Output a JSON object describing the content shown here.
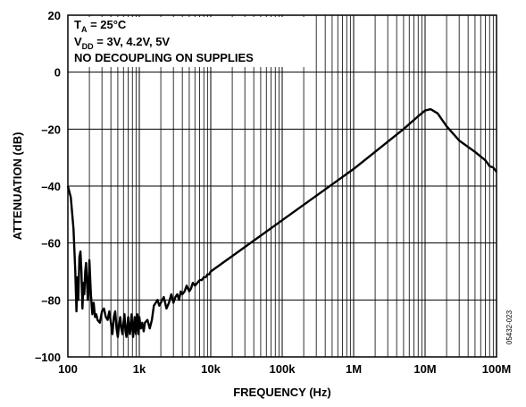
{
  "chart_data": {
    "type": "line",
    "xlabel": "FREQUENCY (Hz)",
    "ylabel": "ATTENUATION (dB)",
    "x_scale": "log",
    "xlim": [
      100,
      100000000
    ],
    "ylim": [
      -100,
      20
    ],
    "grid": true,
    "x_ticks": [
      {
        "value": 100,
        "label": "100"
      },
      {
        "value": 1000,
        "label": "1k"
      },
      {
        "value": 10000,
        "label": "10k"
      },
      {
        "value": 100000,
        "label": "100k"
      },
      {
        "value": 1000000,
        "label": "1M"
      },
      {
        "value": 10000000,
        "label": "10M"
      },
      {
        "value": 100000000,
        "label": "100M"
      }
    ],
    "y_ticks": [
      {
        "value": 20,
        "label": "20"
      },
      {
        "value": 0,
        "label": "0"
      },
      {
        "value": -20,
        "label": "–20"
      },
      {
        "value": -40,
        "label": "–40"
      },
      {
        "value": -60,
        "label": "–60"
      },
      {
        "value": -80,
        "label": "–80"
      },
      {
        "value": -100,
        "label": "–100"
      }
    ],
    "annotations": {
      "line1_main": "T",
      "line1_sub": "A",
      "line1_rest": " = 25°C",
      "line2_main": "V",
      "line2_sub": "DD",
      "line2_rest": " = 3V, 4.2V, 5V",
      "line3": "NO DECOUPLING ON SUPPLIES"
    },
    "figure_id": "05432-023",
    "series": [
      {
        "color": "#000000",
        "x": [
          100,
          110,
          120,
          127,
          132,
          136,
          140,
          145,
          150,
          155,
          160,
          165,
          170,
          175,
          180,
          185,
          190,
          195,
          200,
          210,
          220,
          230,
          240,
          250,
          260,
          280,
          300,
          320,
          340,
          360,
          380,
          400,
          420,
          440,
          460,
          480,
          500,
          520,
          540,
          560,
          580,
          600,
          620,
          640,
          660,
          680,
          700,
          720,
          740,
          760,
          780,
          800,
          820,
          840,
          860,
          880,
          900,
          920,
          940,
          960,
          980,
          1000,
          1050,
          1100,
          1150,
          1200,
          1300,
          1400,
          1500,
          1600,
          1700,
          1800,
          1900,
          2000,
          2200,
          2400,
          2600,
          2800,
          3000,
          3200,
          3400,
          3600,
          3800,
          4000,
          4300,
          4600,
          5000,
          5300,
          5600,
          6000,
          6500,
          7000,
          7500,
          8000,
          8500,
          9000,
          9500,
          10000,
          100000,
          1000000,
          5000000,
          8000000,
          10000000,
          12000000,
          15000000,
          20000000,
          30000000,
          50000000,
          70000000,
          80000000,
          90000000,
          100000000
        ],
        "y": [
          -40,
          -44,
          -55,
          -70,
          -84,
          -72,
          -80,
          -65,
          -63,
          -70,
          -83,
          -74,
          -78,
          -70,
          -67,
          -74,
          -80,
          -76,
          -66,
          -78,
          -85,
          -81,
          -86,
          -85,
          -87,
          -88,
          -84,
          -83,
          -86,
          -87,
          -84,
          -88,
          -92,
          -86,
          -84,
          -90,
          -93,
          -89,
          -86,
          -90,
          -92,
          -88,
          -85,
          -91,
          -93,
          -89,
          -86,
          -91,
          -92,
          -88,
          -85,
          -90,
          -93,
          -89,
          -86,
          -91,
          -92,
          -88,
          -85,
          -89,
          -92,
          -86,
          -90,
          -88,
          -91,
          -88,
          -87,
          -90,
          -87,
          -82,
          -81,
          -80,
          -82,
          -81,
          -79,
          -83,
          -81,
          -78,
          -81,
          -79,
          -78,
          -80,
          -77,
          -78,
          -77,
          -75,
          -77,
          -76,
          -74,
          -75,
          -74,
          -73,
          -73,
          -72,
          -72,
          -71,
          -71,
          -70,
          -52,
          -34,
          -20,
          -15.5,
          -13.5,
          -13,
          -14.5,
          -19,
          -24,
          -28,
          -31,
          -33,
          -33.5,
          -35
        ]
      }
    ]
  }
}
